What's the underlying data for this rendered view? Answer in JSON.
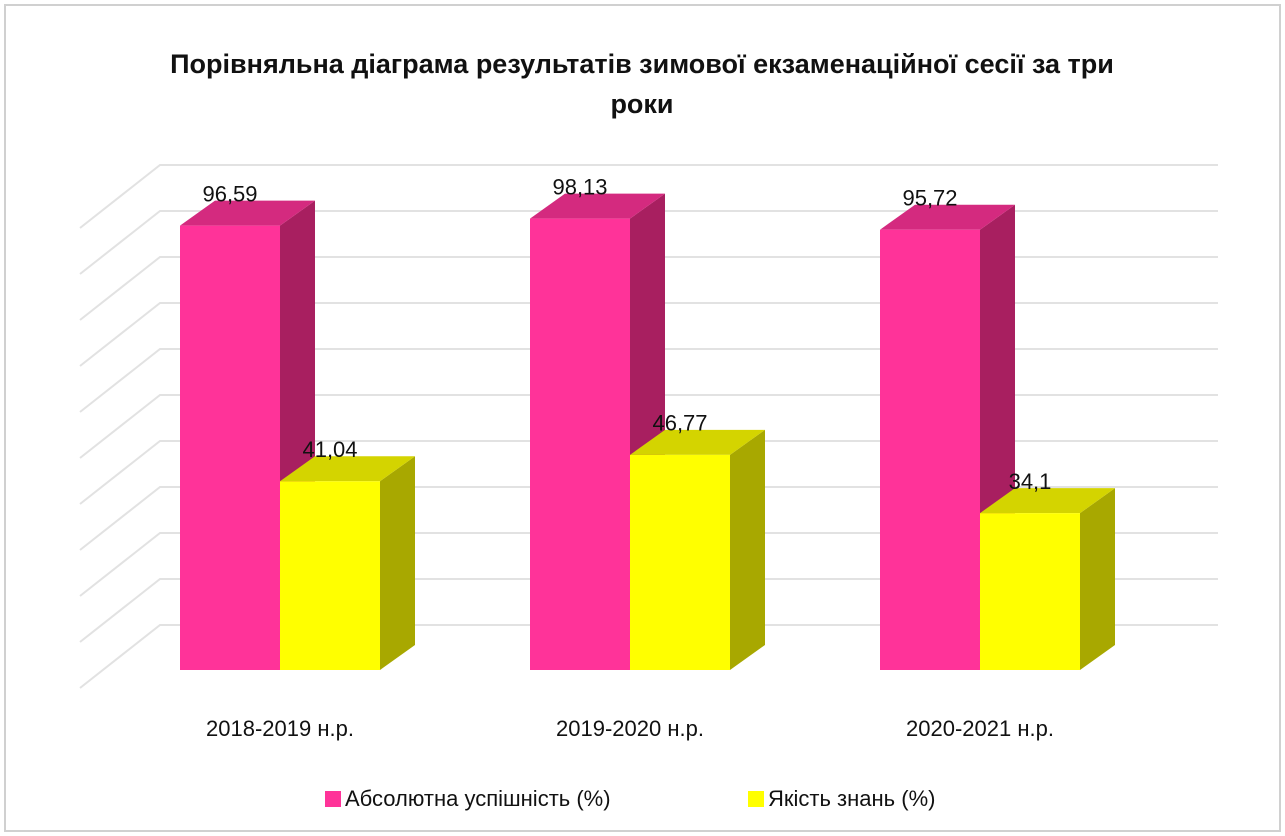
{
  "chart_data": {
    "type": "bar3d",
    "title": "Порівняльна діаграма результатів зимової екзаменаційної сесії за три роки",
    "categories": [
      "2018-2019 н.р.",
      "2019-2020 н.р.",
      "2020-2021 н.р."
    ],
    "series": [
      {
        "name": "Абсолютна успішність (%)",
        "color": "#ff3399",
        "side_color": "#a81f60",
        "top_color": "#d42a7f",
        "values": [
          96.59,
          98.13,
          95.72
        ],
        "value_labels": [
          "96,59",
          "98,13",
          "95,72"
        ]
      },
      {
        "name": "Якість знань (%)",
        "color": "#ffff00",
        "side_color": "#a8a800",
        "top_color": "#d4d400",
        "values": [
          41.04,
          46.77,
          34.1
        ],
        "value_labels": [
          "41,04",
          "46,77",
          "34,1"
        ]
      }
    ],
    "ylim": [
      0,
      100
    ],
    "yticks": [
      0,
      10,
      20,
      30,
      40,
      50,
      60,
      70,
      80,
      90,
      100
    ],
    "grid": true,
    "legend": "bottom"
  }
}
